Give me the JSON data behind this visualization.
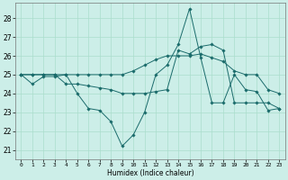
{
  "xlabel": "Humidex (Indice chaleur)",
  "ylabel": "",
  "bg_color": "#cceee8",
  "grid_color": "#aaddcc",
  "line_color": "#1a6b6b",
  "marker_color": "#1a6b6b",
  "xlim": [
    -0.5,
    23.5
  ],
  "ylim": [
    20.5,
    28.8
  ],
  "yticks": [
    21,
    22,
    23,
    24,
    25,
    26,
    27,
    28
  ],
  "xticks": [
    0,
    1,
    2,
    3,
    4,
    5,
    6,
    7,
    8,
    9,
    10,
    11,
    12,
    13,
    14,
    15,
    16,
    17,
    18,
    19,
    20,
    21,
    22,
    23
  ],
  "series": [
    [
      25.0,
      24.5,
      24.9,
      24.9,
      25.0,
      24.0,
      23.2,
      23.1,
      22.5,
      21.2,
      21.8,
      23.0,
      25.0,
      25.5,
      26.6,
      28.5,
      25.9,
      23.5,
      23.5,
      25.0,
      24.2,
      24.1,
      23.1,
      23.2
    ],
    [
      25.0,
      25.0,
      25.0,
      25.0,
      25.0,
      25.0,
      25.0,
      25.0,
      25.0,
      25.0,
      25.2,
      25.5,
      25.8,
      26.0,
      26.0,
      26.0,
      26.1,
      25.9,
      25.7,
      25.2,
      25.0,
      25.0,
      24.2,
      24.0
    ],
    [
      25.0,
      25.0,
      25.0,
      25.0,
      24.5,
      24.5,
      24.4,
      24.3,
      24.2,
      24.0,
      24.0,
      24.0,
      24.1,
      24.2,
      26.3,
      26.1,
      26.5,
      26.6,
      26.3,
      23.5,
      23.5,
      23.5,
      23.5,
      23.2
    ]
  ],
  "figsize": [
    3.2,
    2.0
  ],
  "dpi": 100
}
